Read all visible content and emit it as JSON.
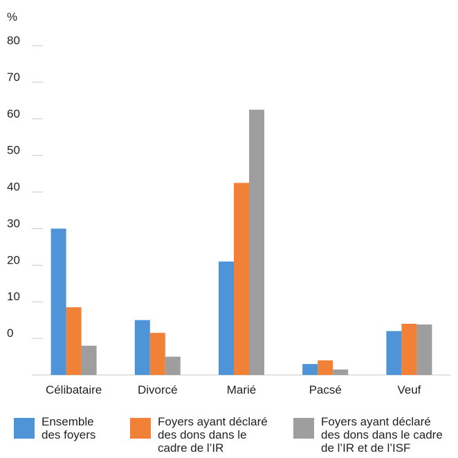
{
  "chart_data": {
    "type": "bar",
    "title": "",
    "unit_label": "%",
    "xlabel": "",
    "ylabel": "",
    "ylim": [
      -10,
      80
    ],
    "y_tick_labels": [
      "0",
      "10",
      "20",
      "30",
      "40",
      "50",
      "60",
      "70",
      "80"
    ],
    "grid": false,
    "legend_position": "bottom",
    "categories": [
      "Célibataire",
      "Divorcé",
      "Marié",
      "Pacsé",
      "Veuf"
    ],
    "series": [
      {
        "name": "Ensemble\ndes foyers",
        "color": "#4e94d7",
        "values": [
          30,
          5,
          21,
          -7,
          2
        ]
      },
      {
        "name": "Foyers ayant déclaré\ndes dons dans le\ncadre de l’IR",
        "color": "#f28138",
        "values": [
          8.5,
          1.5,
          42.5,
          -6,
          4
        ]
      },
      {
        "name": "Foyers ayant déclaré\ndes dons dans le cadre\nde l’IR et de l’ISF",
        "color": "#9e9e9e",
        "values": [
          -2,
          -5,
          62.5,
          -8.5,
          3.8
        ]
      }
    ]
  }
}
